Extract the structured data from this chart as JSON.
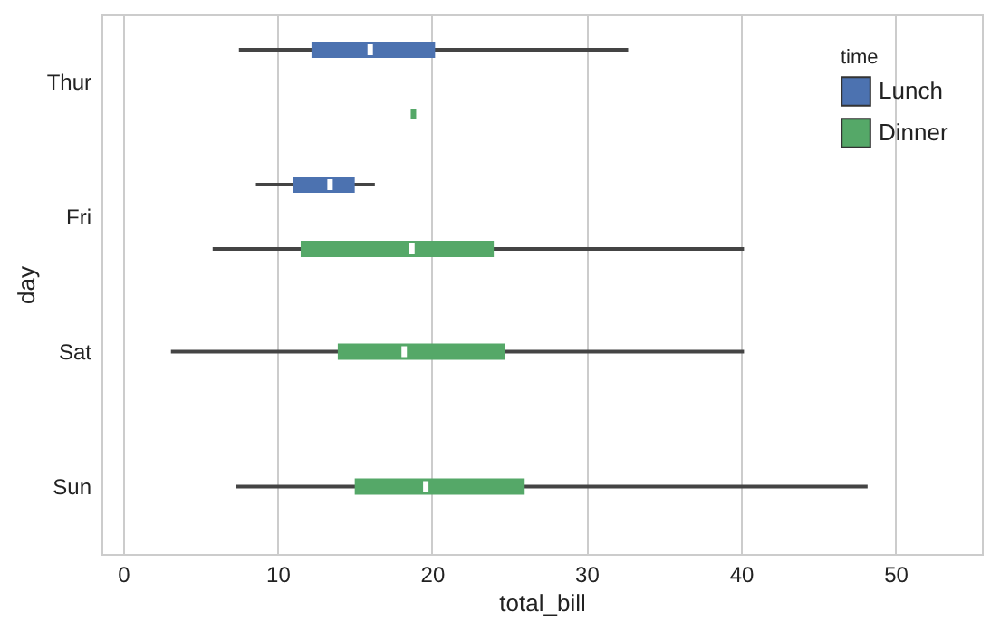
{
  "chart_data": {
    "type": "box",
    "orientation": "horizontal",
    "xlabel": "total_bill",
    "ylabel": "day",
    "legend_title": "time",
    "legend": "top right",
    "grid": "x",
    "categories": [
      "Thur",
      "Fri",
      "Sat",
      "Sun"
    ],
    "xlim": [
      -1.4,
      55.6
    ],
    "xticks": [
      0,
      10,
      20,
      30,
      40,
      50
    ],
    "series": [
      {
        "name": "Lunch",
        "color": "#4c72b0",
        "boxes": [
          {
            "low": 7.5,
            "q1": 12.2,
            "median": 16.0,
            "q3": 20.2,
            "high": 32.7
          },
          {
            "low": 8.6,
            "q1": 11.0,
            "median": 13.4,
            "q3": 15.0,
            "high": 16.3
          },
          null,
          null
        ]
      },
      {
        "name": "Dinner",
        "color": "#55a868",
        "boxes": [
          {
            "low": 18.8,
            "q1": 18.8,
            "median": 18.8,
            "q3": 18.8,
            "high": 18.8
          },
          {
            "low": 5.8,
            "q1": 11.5,
            "median": 18.7,
            "q3": 24.0,
            "high": 40.2
          },
          {
            "low": 3.1,
            "q1": 13.9,
            "median": 18.2,
            "q3": 24.7,
            "high": 40.2
          },
          {
            "low": 7.3,
            "q1": 15.0,
            "median": 19.6,
            "q3": 26.0,
            "high": 48.2
          }
        ]
      }
    ]
  }
}
